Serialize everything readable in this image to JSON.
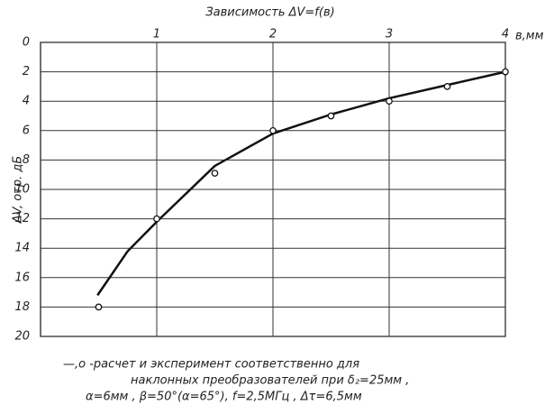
{
  "chart_data": {
    "type": "line",
    "title": "Зависимость ΔV=f(в)",
    "x_label": "в,мм",
    "y_label": "ΔV, отр. дБ",
    "xlim": [
      0,
      4
    ],
    "ylim": [
      0,
      20
    ],
    "y_reversed": true,
    "xticks": [
      1,
      2,
      3,
      4
    ],
    "yticks": [
      0,
      2,
      4,
      6,
      8,
      10,
      12,
      14,
      16,
      18,
      20
    ],
    "grid": true,
    "series": [
      {
        "style": "line",
        "color": "#111111",
        "x": [
          0.49,
          0.75,
          1,
          1.5,
          2,
          2.5,
          3,
          3.5,
          4
        ],
        "values": [
          17.2,
          14.2,
          12.2,
          8.4,
          6.2,
          4.9,
          3.8,
          2.9,
          2.0
        ]
      },
      {
        "style": "markers",
        "color": "#111111",
        "x": [
          0.5,
          1,
          1.5,
          2,
          2.5,
          3,
          3.5,
          4
        ],
        "values": [
          18,
          12,
          8.9,
          6,
          5,
          4,
          3,
          2
        ]
      }
    ],
    "legend_lines": [
      "—,о -расчет и эксперимент соответственно для",
      "наклонных преобразователей при δ₂=25мм ,",
      "α=6мм ,  β=50°(α=65°), f=2,5МГц , Δτ=6,5мм"
    ]
  }
}
